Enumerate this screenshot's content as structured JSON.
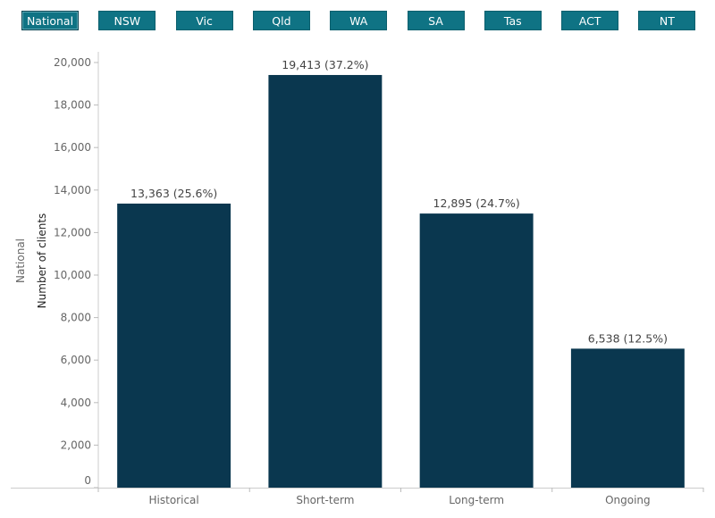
{
  "tabs": [
    "National",
    "NSW",
    "Vic",
    "Qld",
    "WA",
    "SA",
    "Tas",
    "ACT",
    "NT"
  ],
  "active_tab": "National",
  "colors": {
    "tab_bg": "#0f7384",
    "bar": "#0a374f",
    "tab_text": "#ffffff"
  },
  "chart_data": {
    "type": "bar",
    "panel_label": "National",
    "ylabel": "Number of clients",
    "xlabel": "",
    "ylim": [
      0,
      20000
    ],
    "yticks": [
      0,
      2000,
      4000,
      6000,
      8000,
      10000,
      12000,
      14000,
      16000,
      18000,
      20000
    ],
    "ytick_labels": [
      "0",
      "2,000",
      "4,000",
      "6,000",
      "8,000",
      "10,000",
      "12,000",
      "14,000",
      "16,000",
      "18,000",
      "20,000"
    ],
    "categories": [
      "Historical",
      "Short-term",
      "Long-term",
      "Ongoing"
    ],
    "values": [
      13363,
      19413,
      12895,
      6538
    ],
    "data_labels": [
      "13,363 (25.6%)",
      "19,413 (37.2%)",
      "12,895 (24.7%)",
      "6,538 (12.5%)"
    ]
  }
}
